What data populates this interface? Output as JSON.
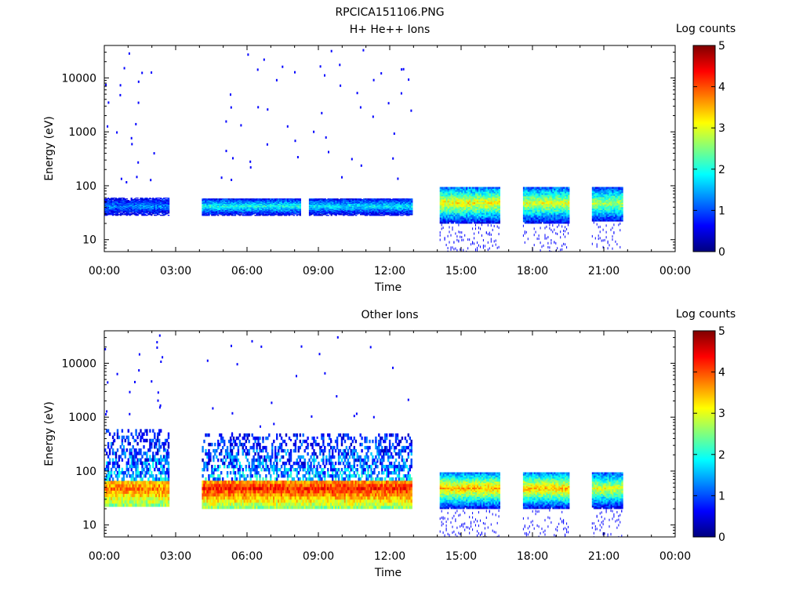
{
  "figure": {
    "title": "RPCICA151106.PNG"
  },
  "colormap": [
    "#00007f",
    "#0000ff",
    "#007fff",
    "#00ffff",
    "#7fff7f",
    "#ffff00",
    "#ff7f00",
    "#ff0000",
    "#7f0000"
  ],
  "chart_data": [
    {
      "type": "heatmap",
      "title": "H+ He++ Ions",
      "xlabel": "Time",
      "ylabel": "Energy (eV)",
      "colorbar_label": "Log counts",
      "colorbar_ticks": [
        "0",
        "1",
        "2",
        "3",
        "4",
        "5"
      ],
      "colorbar_range": [
        0,
        5
      ],
      "x_ticks": [
        "00:00",
        "03:00",
        "06:00",
        "09:00",
        "12:00",
        "15:00",
        "18:00",
        "21:00",
        "00:00"
      ],
      "x_range_hours": [
        0,
        24
      ],
      "y_scale": "log",
      "y_range": [
        6,
        40000
      ],
      "y_ticks": [
        {
          "value": 10,
          "label": "10"
        },
        {
          "value": 100,
          "label": "100"
        },
        {
          "value": 1000,
          "label": "1000"
        },
        {
          "value": 10000,
          "label": "10000"
        }
      ],
      "blocks": [
        {
          "t_start": 0.0,
          "t_end": 2.7,
          "e_low": 28,
          "e_high": 60,
          "peak_log_counts": 1.3
        },
        {
          "t_start": 4.1,
          "t_end": 8.2,
          "e_low": 28,
          "e_high": 58,
          "peak_log_counts": 2.0
        },
        {
          "t_start": 8.6,
          "t_end": 12.9,
          "e_low": 28,
          "e_high": 58,
          "peak_log_counts": 1.8
        },
        {
          "t_start": 14.1,
          "t_end": 16.6,
          "e_low": 20,
          "e_high": 95,
          "peak_log_counts": 3.2
        },
        {
          "t_start": 17.6,
          "t_end": 19.5,
          "e_low": 20,
          "e_high": 95,
          "peak_log_counts": 3.0
        },
        {
          "t_start": 20.5,
          "t_end": 21.8,
          "e_low": 22,
          "e_high": 95,
          "peak_log_counts": 2.8
        }
      ],
      "gaps_hours": [
        [
          2.7,
          4.1
        ],
        [
          12.9,
          14.1
        ],
        [
          16.6,
          17.6
        ],
        [
          19.5,
          20.5
        ],
        [
          21.8,
          24.0
        ]
      ]
    },
    {
      "type": "heatmap",
      "title": "Other Ions",
      "xlabel": "Time",
      "ylabel": "Energy (eV)",
      "colorbar_label": "Log counts",
      "colorbar_ticks": [
        "0",
        "1",
        "2",
        "3",
        "4",
        "5"
      ],
      "colorbar_range": [
        0,
        5
      ],
      "x_ticks": [
        "00:00",
        "03:00",
        "06:00",
        "09:00",
        "12:00",
        "15:00",
        "18:00",
        "21:00",
        "00:00"
      ],
      "x_range_hours": [
        0,
        24
      ],
      "y_scale": "log",
      "y_range": [
        6,
        40000
      ],
      "y_ticks": [
        {
          "value": 10,
          "label": "10"
        },
        {
          "value": 100,
          "label": "100"
        },
        {
          "value": 1000,
          "label": "1000"
        },
        {
          "value": 10000,
          "label": "10000"
        }
      ],
      "blocks": [
        {
          "t_start": 0.0,
          "t_end": 2.7,
          "e_low": 22,
          "e_high": 600,
          "peak_log_counts": 3.8
        },
        {
          "t_start": 4.1,
          "t_end": 12.9,
          "e_low": 20,
          "e_high": 500,
          "peak_log_counts": 4.2
        },
        {
          "t_start": 14.1,
          "t_end": 16.6,
          "e_low": 20,
          "e_high": 95,
          "peak_log_counts": 3.5
        },
        {
          "t_start": 17.6,
          "t_end": 19.5,
          "e_low": 20,
          "e_high": 95,
          "peak_log_counts": 3.5
        },
        {
          "t_start": 20.5,
          "t_end": 21.8,
          "e_low": 20,
          "e_high": 95,
          "peak_log_counts": 3.0
        }
      ],
      "gaps_hours": [
        [
          2.7,
          4.1
        ],
        [
          12.9,
          14.1
        ],
        [
          16.6,
          17.6
        ],
        [
          19.5,
          20.5
        ],
        [
          21.8,
          24.0
        ]
      ]
    }
  ]
}
